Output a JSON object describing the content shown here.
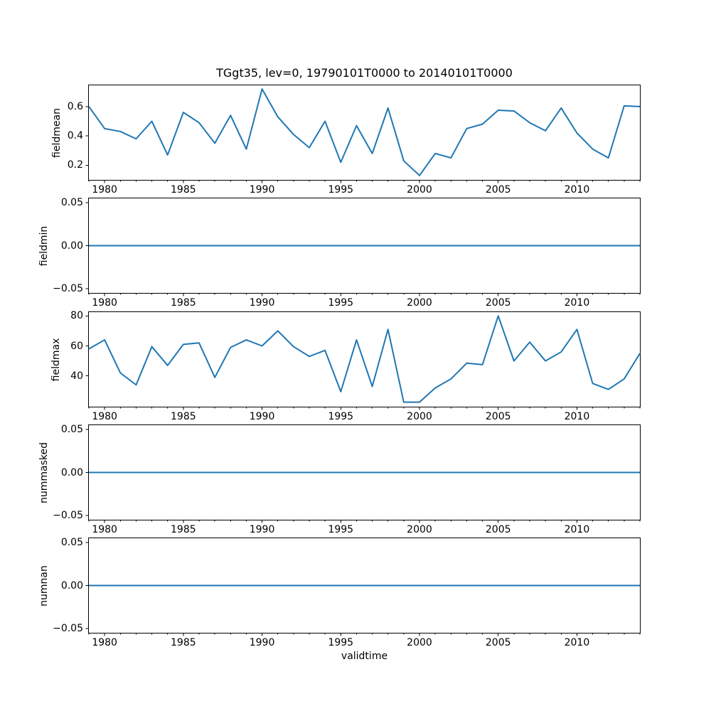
{
  "colors": {
    "line": "#1f77b4",
    "axes": "#000000",
    "text": "#000000",
    "background": "#ffffff"
  },
  "chart_data": {
    "type": "line",
    "title": "TGgt35, lev=0, 19790101T0000 to 20140101T0000",
    "grid": false,
    "legend": "none",
    "shared_x": {
      "label": "validtime",
      "xlim": [
        1979,
        2014
      ],
      "years": [
        1979,
        1980,
        1981,
        1982,
        1983,
        1984,
        1985,
        1986,
        1987,
        1988,
        1989,
        1990,
        1991,
        1992,
        1993,
        1994,
        1995,
        1996,
        1997,
        1998,
        1999,
        2000,
        2001,
        2002,
        2003,
        2004,
        2005,
        2006,
        2007,
        2008,
        2009,
        2010,
        2011,
        2012,
        2013,
        2014
      ],
      "major_ticks": [
        1980,
        1985,
        1990,
        1995,
        2000,
        2005,
        2010
      ],
      "major_tick_labels": [
        "1980",
        "1985",
        "1990",
        "1995",
        "2000",
        "2005",
        "2010"
      ],
      "minor_ticks_every_years": 1
    },
    "subplots": [
      {
        "ylabel": "fieldmean",
        "ylim": [
          0.1,
          0.745
        ],
        "yticks": [
          0.2,
          0.4,
          0.6
        ],
        "ytick_labels": [
          "0.2",
          "0.4",
          "0.6"
        ],
        "values": [
          0.6,
          0.45,
          0.43,
          0.38,
          0.5,
          0.27,
          0.56,
          0.49,
          0.35,
          0.54,
          0.31,
          0.72,
          0.53,
          0.41,
          0.32,
          0.5,
          0.22,
          0.47,
          0.28,
          0.59,
          0.23,
          0.13,
          0.28,
          0.25,
          0.45,
          0.48,
          0.575,
          0.57,
          0.49,
          0.435,
          0.59,
          0.42,
          0.31,
          0.25,
          0.605,
          0.6
        ]
      },
      {
        "ylabel": "fieldmin",
        "ylim": [
          -0.055,
          0.055
        ],
        "yticks": [
          -0.05,
          0.0,
          0.05
        ],
        "ytick_labels": [
          "−0.05",
          "0.00",
          "0.05"
        ],
        "values": [
          0,
          0,
          0,
          0,
          0,
          0,
          0,
          0,
          0,
          0,
          0,
          0,
          0,
          0,
          0,
          0,
          0,
          0,
          0,
          0,
          0,
          0,
          0,
          0,
          0,
          0,
          0,
          0,
          0,
          0,
          0,
          0,
          0,
          0,
          0,
          0
        ]
      },
      {
        "ylabel": "fieldmax",
        "ylim": [
          19.5,
          82.5
        ],
        "yticks": [
          40,
          60,
          80
        ],
        "ytick_labels": [
          "40",
          "60",
          "80"
        ],
        "values": [
          58,
          64,
          42,
          34,
          59.5,
          47,
          61,
          62,
          39,
          59,
          64,
          60,
          70,
          59.5,
          53,
          57,
          29.5,
          64,
          33,
          71,
          22.5,
          22.5,
          32,
          38,
          48.5,
          47.5,
          80,
          50,
          62.5,
          50,
          56,
          71,
          35,
          31,
          38,
          55
        ]
      },
      {
        "ylabel": "nummasked",
        "ylim": [
          -0.055,
          0.055
        ],
        "yticks": [
          -0.05,
          0.0,
          0.05
        ],
        "ytick_labels": [
          "−0.05",
          "0.00",
          "0.05"
        ],
        "values": [
          0,
          0,
          0,
          0,
          0,
          0,
          0,
          0,
          0,
          0,
          0,
          0,
          0,
          0,
          0,
          0,
          0,
          0,
          0,
          0,
          0,
          0,
          0,
          0,
          0,
          0,
          0,
          0,
          0,
          0,
          0,
          0,
          0,
          0,
          0,
          0
        ]
      },
      {
        "ylabel": "numnan",
        "ylim": [
          -0.055,
          0.055
        ],
        "yticks": [
          -0.05,
          0.0,
          0.05
        ],
        "ytick_labels": [
          "−0.05",
          "0.00",
          "0.05"
        ],
        "values": [
          0,
          0,
          0,
          0,
          0,
          0,
          0,
          0,
          0,
          0,
          0,
          0,
          0,
          0,
          0,
          0,
          0,
          0,
          0,
          0,
          0,
          0,
          0,
          0,
          0,
          0,
          0,
          0,
          0,
          0,
          0,
          0,
          0,
          0,
          0,
          0
        ]
      }
    ]
  }
}
